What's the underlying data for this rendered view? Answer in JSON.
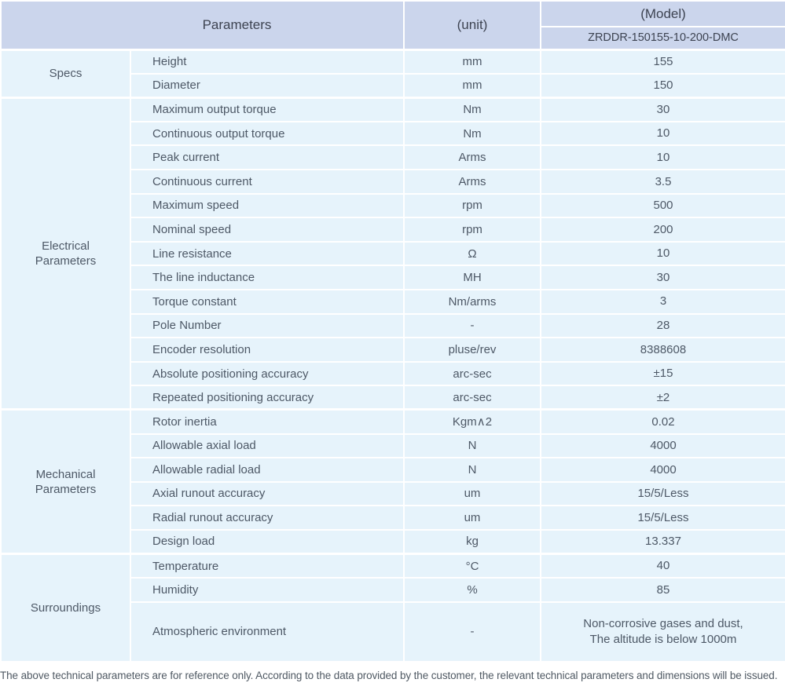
{
  "header": {
    "parameters_label": "Parameters",
    "unit_label": "(unit)",
    "model_label": "(Model)",
    "model_value": "ZRDDR-150155-10-200-DMC"
  },
  "sections": [
    {
      "name": "Specs",
      "rows": [
        {
          "parameter": "Height",
          "unit": "mm",
          "value": "155"
        },
        {
          "parameter": "Diameter",
          "unit": "mm",
          "value": "150"
        }
      ]
    },
    {
      "name": "Electrical Parameters",
      "rows": [
        {
          "parameter": "Maximum output torque",
          "unit": "Nm",
          "value": "30"
        },
        {
          "parameter": "Continuous output torque",
          "unit": "Nm",
          "value": "10"
        },
        {
          "parameter": "Peak current",
          "unit": "Arms",
          "value": "10"
        },
        {
          "parameter": "Continuous current",
          "unit": "Arms",
          "value": "3.5"
        },
        {
          "parameter": "Maximum speed",
          "unit": "rpm",
          "value": "500"
        },
        {
          "parameter": "Nominal speed",
          "unit": "rpm",
          "value": "200"
        },
        {
          "parameter": "Line resistance",
          "unit": "Ω",
          "value": "10"
        },
        {
          "parameter": "The line inductance",
          "unit": "MH",
          "value": "30"
        },
        {
          "parameter": "Torque constant",
          "unit": "Nm/arms",
          "value": "3"
        },
        {
          "parameter": "Pole Number",
          "unit": "-",
          "value": "28"
        },
        {
          "parameter": "Encoder resolution",
          "unit": "pluse/rev",
          "value": "8388608"
        },
        {
          "parameter": "Absolute positioning accuracy",
          "unit": "arc-sec",
          "value": "±15"
        },
        {
          "parameter": "Repeated positioning accuracy",
          "unit": "arc-sec",
          "value": "±2"
        }
      ]
    },
    {
      "name": "Mechanical Parameters",
      "rows": [
        {
          "parameter": "Rotor inertia",
          "unit": "Kgm∧2",
          "value": "0.02"
        },
        {
          "parameter": "Allowable axial load",
          "unit": "N",
          "value": "4000"
        },
        {
          "parameter": "Allowable radial load",
          "unit": "N",
          "value": "4000"
        },
        {
          "parameter": "Axial runout accuracy",
          "unit": "um",
          "value": "15/5/Less"
        },
        {
          "parameter": "Radial runout accuracy",
          "unit": "um",
          "value": "15/5/Less"
        },
        {
          "parameter": "Design load",
          "unit": "kg",
          "value": "13.337"
        }
      ]
    },
    {
      "name": "Surroundings",
      "rows": [
        {
          "parameter": "Temperature",
          "unit": "°C",
          "value": "40"
        },
        {
          "parameter": "Humidity",
          "unit": "%",
          "value": "85"
        },
        {
          "parameter": "Atmospheric environment",
          "unit": "-",
          "value": "Non-corrosive gases and dust,\nThe altitude is below 1000m",
          "tall": true
        }
      ]
    }
  ],
  "footer": {
    "note": "The above technical parameters are for reference only. According to the data provided by the customer, the relevant technical parameters and dimensions will be issued."
  },
  "colors": {
    "header_bg": "#cbd5ec",
    "row_bg": "#e6f3fb",
    "divider": "#ffffff",
    "header_text": "#3d4351",
    "body_text": "#4d5866",
    "footer_text": "#4f5963"
  }
}
